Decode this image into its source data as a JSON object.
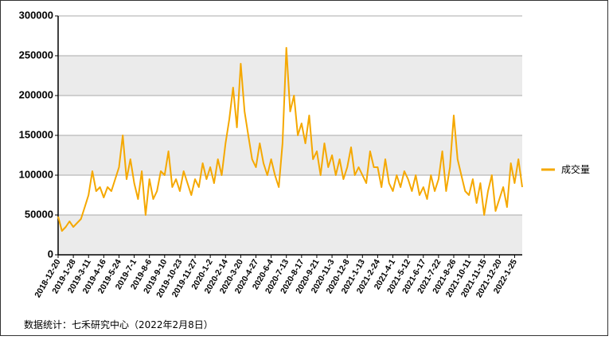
{
  "chart_data": {
    "type": "line",
    "categories": [
      "2018-12-20",
      null,
      null,
      null,
      "2019-1-28",
      null,
      null,
      null,
      "2019-3-11",
      null,
      null,
      null,
      "2019-4-16",
      null,
      null,
      null,
      "2019-5-24",
      null,
      null,
      null,
      "2019-7-1",
      null,
      null,
      null,
      "2019-8-6",
      null,
      null,
      null,
      "2019-9-10",
      null,
      null,
      null,
      "2019-10-23",
      null,
      null,
      null,
      "2019-11-27",
      null,
      null,
      null,
      "2020-1-2",
      null,
      null,
      null,
      "2020-2-14",
      null,
      null,
      null,
      "2020-3-20",
      null,
      null,
      null,
      "2020-4-27",
      null,
      null,
      null,
      "2020-6-4",
      null,
      null,
      null,
      "2020-7-13",
      null,
      null,
      null,
      "2020-8-17",
      null,
      null,
      null,
      "2020-9-21",
      null,
      null,
      null,
      "2020-11-3",
      null,
      null,
      null,
      "2020-12-8",
      null,
      null,
      null,
      "2021-1-13",
      null,
      null,
      null,
      "2021-2-24",
      null,
      null,
      null,
      "2021-4-1",
      null,
      null,
      null,
      "2021-5-12",
      null,
      null,
      null,
      "2021-6-17",
      null,
      null,
      null,
      "2021-7-22",
      null,
      null,
      null,
      "2021-8-26",
      null,
      null,
      null,
      "2021-10-11",
      null,
      null,
      null,
      "2021-11-15",
      null,
      null,
      null,
      "2021-12-20",
      null,
      null,
      null,
      "2022-1-25",
      null,
      null
    ],
    "series": [
      {
        "name": "成交量",
        "color": "#f5a800",
        "values": [
          48000,
          30000,
          35000,
          42000,
          35000,
          40000,
          45000,
          60000,
          75000,
          105000,
          80000,
          85000,
          72000,
          85000,
          80000,
          95000,
          110000,
          150000,
          95000,
          120000,
          90000,
          70000,
          105000,
          50000,
          95000,
          70000,
          80000,
          105000,
          100000,
          130000,
          85000,
          95000,
          80000,
          105000,
          90000,
          75000,
          95000,
          85000,
          115000,
          95000,
          110000,
          90000,
          120000,
          100000,
          140000,
          170000,
          210000,
          160000,
          240000,
          180000,
          150000,
          120000,
          110000,
          140000,
          115000,
          100000,
          120000,
          100000,
          85000,
          140000,
          260000,
          180000,
          200000,
          150000,
          165000,
          140000,
          175000,
          120000,
          130000,
          100000,
          140000,
          110000,
          125000,
          100000,
          120000,
          95000,
          110000,
          135000,
          100000,
          110000,
          100000,
          90000,
          130000,
          110000,
          110000,
          85000,
          120000,
          90000,
          80000,
          100000,
          85000,
          105000,
          95000,
          80000,
          100000,
          75000,
          85000,
          70000,
          100000,
          80000,
          95000,
          130000,
          80000,
          110000,
          175000,
          120000,
          100000,
          80000,
          75000,
          95000,
          65000,
          90000,
          50000,
          80000,
          100000,
          55000,
          70000,
          85000,
          60000,
          115000,
          90000,
          120000,
          85000
        ]
      }
    ],
    "ylim": [
      0,
      300000
    ],
    "yticks": [
      0,
      50000,
      100000,
      150000,
      200000,
      250000,
      300000
    ],
    "grid": true,
    "legend": "right",
    "source": "数据统计：七禾研究中心（2022年2月8日）"
  }
}
